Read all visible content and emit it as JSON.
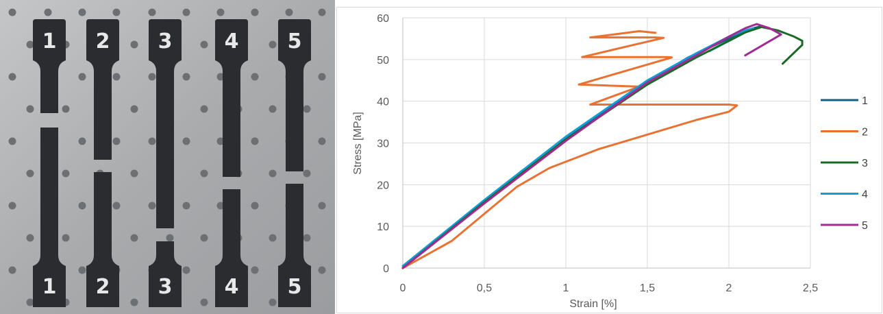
{
  "photo": {
    "specimens": [
      {
        "top_label": "1",
        "bottom_label": "1"
      },
      {
        "top_label": "2",
        "bottom_label": "2"
      },
      {
        "top_label": "3",
        "bottom_label": "3"
      },
      {
        "top_label": "4",
        "bottom_label": "4"
      },
      {
        "top_label": "5",
        "bottom_label": "5"
      }
    ],
    "colors": {
      "plate": "#aeb0b2",
      "specimen": "#2a2c30",
      "hole": "#6d7073",
      "label": "#e8e8e8"
    }
  },
  "chart_data": {
    "type": "line",
    "title": "",
    "xlabel": "Strain [%]",
    "ylabel": "Stress  [MPa]",
    "xlim": [
      0,
      2.5
    ],
    "ylim": [
      0,
      60
    ],
    "x_ticks": [
      "0",
      "0,5",
      "1",
      "1,5",
      "2",
      "2,5"
    ],
    "y_ticks": [
      "0",
      "10",
      "20",
      "30",
      "40",
      "50",
      "60"
    ],
    "grid": true,
    "legend_position": "right",
    "series": [
      {
        "name": "1",
        "color": "#156082",
        "x": [
          0,
          0.25,
          0.5,
          0.75,
          1.0,
          1.25,
          1.5,
          1.75,
          2.0,
          2.1,
          2.15,
          2.2
        ],
        "y": [
          0,
          8,
          16,
          23.5,
          31,
          38,
          44.5,
          50.5,
          55,
          56.8,
          57.5,
          58
        ]
      },
      {
        "name": "2",
        "color": "#e97132",
        "x": [
          0,
          0.3,
          0.5,
          0.7,
          0.9,
          1.2,
          1.5,
          1.8,
          2.0,
          2.05,
          2.0,
          1.15,
          1.45,
          1.08,
          1.65,
          1.62,
          1.1,
          1.6,
          1.55,
          1.15,
          1.45,
          1.55
        ],
        "y": [
          0,
          6.5,
          13,
          19.5,
          24,
          28.5,
          32,
          35.5,
          37.5,
          39,
          39.2,
          39.2,
          43.5,
          44,
          50.5,
          50.6,
          50.6,
          55.2,
          55.3,
          55.3,
          56.8,
          56.4
        ]
      },
      {
        "name": "3",
        "color": "#196b24",
        "x": [
          0,
          0.5,
          1.0,
          1.5,
          1.8,
          2.0,
          2.1,
          2.2,
          2.3,
          2.4,
          2.45,
          2.45,
          2.33
        ],
        "y": [
          0,
          15.8,
          30.8,
          44,
          50.5,
          54.5,
          56.5,
          57.8,
          57,
          55.5,
          54.5,
          53.5,
          49
        ]
      },
      {
        "name": "4",
        "color": "#0f9ed5",
        "x": [
          0,
          0.5,
          1.0,
          1.5,
          1.8,
          2.0,
          2.1,
          2.15,
          1.88
        ],
        "y": [
          0.5,
          16.3,
          31.5,
          45,
          51.5,
          55.5,
          57,
          57.5,
          52
        ]
      },
      {
        "name": "5",
        "color": "#a02b93",
        "x": [
          0,
          0.5,
          1.0,
          1.5,
          1.8,
          2.0,
          2.1,
          2.17,
          2.25,
          2.32,
          2.1
        ],
        "y": [
          0,
          15.5,
          30.5,
          44.5,
          51,
          55.5,
          57.5,
          58.5,
          57.5,
          56,
          51
        ]
      }
    ]
  }
}
